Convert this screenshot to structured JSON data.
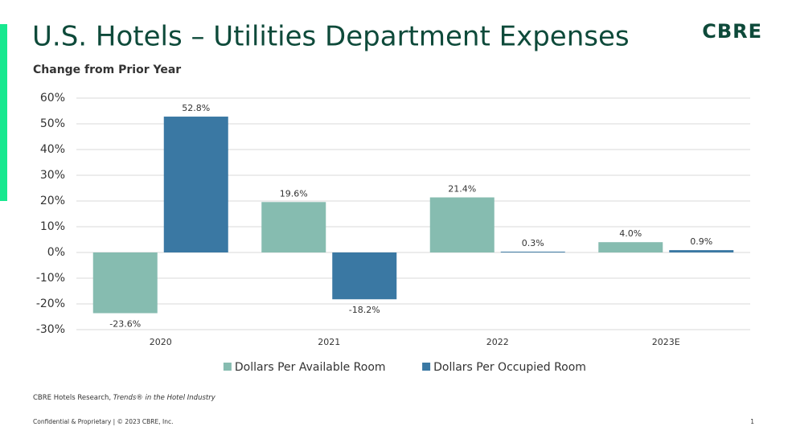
{
  "logo": "CBRE",
  "chart_data": {
    "type": "bar",
    "title": "U.S. Hotels – Utilities Department Expenses",
    "subtitle": "Change from Prior Year",
    "categories": [
      "2020",
      "2021",
      "2022",
      "2023E"
    ],
    "series": [
      {
        "name": "Dollars Per Available Room",
        "color": "#86bcb0",
        "values": [
          -23.6,
          19.6,
          21.4,
          4.0
        ],
        "value_labels": [
          "-23.6%",
          "19.6%",
          "21.4%",
          "4.0%"
        ]
      },
      {
        "name": "Dollars Per Occupied Room",
        "color": "#3a78a3",
        "values": [
          52.8,
          -18.2,
          0.3,
          0.9
        ],
        "value_labels": [
          "52.8%",
          "-18.2%",
          "0.3%",
          "0.9%"
        ]
      }
    ],
    "ylim": [
      -30,
      60
    ],
    "yticks": [
      {
        "value": -30,
        "label": "-30%"
      },
      {
        "value": -20,
        "label": "-20%"
      },
      {
        "value": -10,
        "label": "-10%"
      },
      {
        "value": 0,
        "label": "0%"
      },
      {
        "value": 10,
        "label": "10%"
      },
      {
        "value": 20,
        "label": "20%"
      },
      {
        "value": 30,
        "label": "30%"
      },
      {
        "value": 40,
        "label": "40%"
      },
      {
        "value": 50,
        "label": "50%"
      },
      {
        "value": 60,
        "label": "60%"
      }
    ],
    "grid": true,
    "legend": "bottom"
  },
  "source": {
    "prefix": "CBRE Hotels Research, ",
    "italic": "Trends® in the Hotel Industry"
  },
  "footer": "Confidential & Proprietary | © 2023 CBRE, Inc.",
  "page_number": "1"
}
